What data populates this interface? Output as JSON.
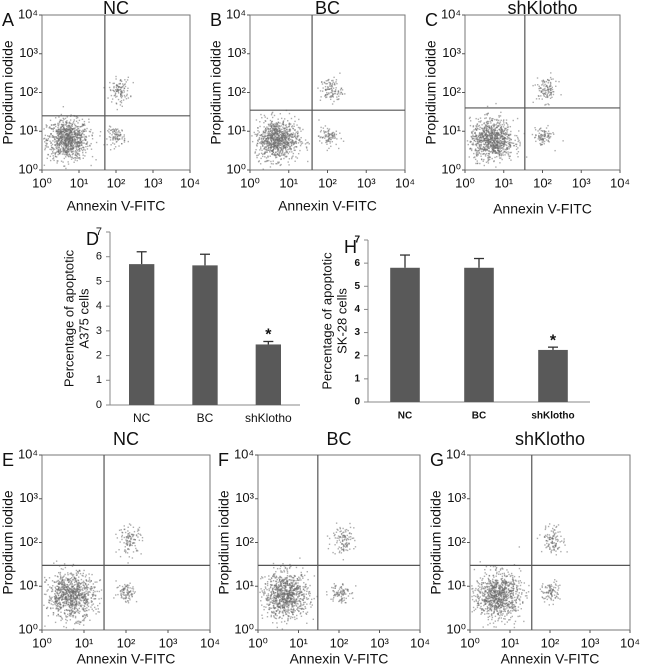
{
  "chart_data": [
    {
      "type": "flow",
      "panel": "A",
      "title": "NC",
      "xlabel": "Annexin V-FITC",
      "ylabel": "Propidium iodide",
      "log_scale": true,
      "xlim": [
        1,
        10000
      ],
      "ylim": [
        1,
        10000
      ],
      "gate_x": 50,
      "gate_y": 25,
      "xticks": [
        {
          "value": 1,
          "label": "10⁰"
        },
        {
          "value": 10,
          "label": "10¹"
        },
        {
          "value": 100,
          "label": "10²"
        },
        {
          "value": 1000,
          "label": "10³"
        },
        {
          "value": 10000,
          "label": "10⁴"
        }
      ],
      "yticks": [
        {
          "value": 1,
          "label": "10⁰"
        },
        {
          "value": 10,
          "label": "10¹"
        },
        {
          "value": 100,
          "label": "10²"
        },
        {
          "value": 1000,
          "label": "10³"
        },
        {
          "value": 10000,
          "label": "10⁴"
        }
      ]
    },
    {
      "type": "flow",
      "panel": "B",
      "title": "BC",
      "xlabel": "Annexin V-FITC",
      "ylabel": "Propidium iodide",
      "log_scale": true,
      "xlim": [
        1,
        10000
      ],
      "ylim": [
        1,
        10000
      ],
      "gate_x": 40,
      "gate_y": 35,
      "xticks": [
        {
          "value": 1,
          "label": "10⁰"
        },
        {
          "value": 10,
          "label": "10¹"
        },
        {
          "value": 100,
          "label": "10²"
        },
        {
          "value": 1000,
          "label": "10³"
        },
        {
          "value": 10000,
          "label": "10⁴"
        }
      ],
      "yticks": [
        {
          "value": 1,
          "label": "10⁰"
        },
        {
          "value": 10,
          "label": "10¹"
        },
        {
          "value": 100,
          "label": "10²"
        },
        {
          "value": 1000,
          "label": "10³"
        },
        {
          "value": 10000,
          "label": "10⁴"
        }
      ]
    },
    {
      "type": "flow",
      "panel": "C",
      "title": "shKlotho",
      "xlabel": "Annexin V-FITC",
      "ylabel": "Propidium iodide",
      "log_scale": true,
      "xlim": [
        1,
        10000
      ],
      "ylim": [
        1,
        10000
      ],
      "gate_x": 35,
      "gate_y": 40,
      "xticks": [
        {
          "value": 1,
          "label": "10⁰"
        },
        {
          "value": 10,
          "label": "10¹"
        },
        {
          "value": 100,
          "label": "10²"
        },
        {
          "value": 1000,
          "label": "10³"
        },
        {
          "value": 10000,
          "label": "10⁴"
        }
      ],
      "yticks": [
        {
          "value": 1,
          "label": "10⁰"
        },
        {
          "value": 10,
          "label": "10¹"
        },
        {
          "value": 100,
          "label": "10²"
        },
        {
          "value": 1000,
          "label": "10³"
        },
        {
          "value": 10000,
          "label": "10⁴"
        }
      ]
    },
    {
      "type": "bar",
      "panel": "D",
      "ylabel": [
        "Percentage of apoptotic",
        "A375 cells"
      ],
      "categories": [
        "NC",
        "BC",
        "shKlotho"
      ],
      "values": [
        5.7,
        5.65,
        2.45
      ],
      "errors": [
        0.5,
        0.45,
        0.12
      ],
      "annotations": [
        null,
        null,
        "*"
      ],
      "color": "#595959",
      "ylim": [
        0,
        7
      ],
      "yticks": [
        0,
        1,
        2,
        3,
        4,
        5,
        6,
        7
      ]
    },
    {
      "type": "bar",
      "panel": "H",
      "ylabel": [
        "Percentage of apoptotic",
        "SK-28 cells"
      ],
      "categories": [
        "NC",
        "BC",
        "shKlotho"
      ],
      "values": [
        5.8,
        5.8,
        2.25
      ],
      "errors": [
        0.55,
        0.4,
        0.12
      ],
      "annotations": [
        null,
        null,
        "*"
      ],
      "color": "#595959",
      "ylim": [
        0,
        7
      ],
      "yticks": [
        0,
        1,
        2,
        3,
        4,
        5,
        6,
        7
      ]
    },
    {
      "type": "flow",
      "panel": "E",
      "title": "NC",
      "xlabel": "Annexin V-FITC",
      "ylabel": "Propidium iodide",
      "log_scale": true,
      "xlim": [
        1,
        10000
      ],
      "ylim": [
        1,
        10000
      ],
      "gate_x": 30,
      "gate_y": 30,
      "xticks": [
        {
          "value": 1,
          "label": "10⁰"
        },
        {
          "value": 10,
          "label": "10¹"
        },
        {
          "value": 100,
          "label": "10²"
        },
        {
          "value": 1000,
          "label": "10³"
        },
        {
          "value": 10000,
          "label": "10⁴"
        }
      ],
      "yticks": [
        {
          "value": 1,
          "label": "10⁰"
        },
        {
          "value": 10,
          "label": "10¹"
        },
        {
          "value": 100,
          "label": "10²"
        },
        {
          "value": 1000,
          "label": "10³"
        },
        {
          "value": 10000,
          "label": "10⁴"
        }
      ]
    },
    {
      "type": "flow",
      "panel": "F",
      "title": "BC",
      "xlabel": "Annexin V-FITC",
      "ylabel": "Propidium iodide",
      "log_scale": true,
      "xlim": [
        1,
        10000
      ],
      "ylim": [
        1,
        10000
      ],
      "gate_x": 30,
      "gate_y": 30,
      "xticks": [
        {
          "value": 1,
          "label": "10⁰"
        },
        {
          "value": 10,
          "label": "10¹"
        },
        {
          "value": 100,
          "label": "10²"
        },
        {
          "value": 1000,
          "label": "10³"
        },
        {
          "value": 10000,
          "label": "10⁴"
        }
      ],
      "yticks": [
        {
          "value": 1,
          "label": "10⁰"
        },
        {
          "value": 10,
          "label": "10¹"
        },
        {
          "value": 100,
          "label": "10²"
        },
        {
          "value": 1000,
          "label": "10³"
        },
        {
          "value": 10000,
          "label": "10⁴"
        }
      ]
    },
    {
      "type": "flow",
      "panel": "G",
      "title": "shKlotho",
      "xlabel": "Annexin V-FITC",
      "ylabel": "Propidium iodide",
      "log_scale": true,
      "xlim": [
        1,
        10000
      ],
      "ylim": [
        1,
        10000
      ],
      "gate_x": 35,
      "gate_y": 30,
      "xticks": [
        {
          "value": 1,
          "label": "10⁰"
        },
        {
          "value": 10,
          "label": "10¹"
        },
        {
          "value": 100,
          "label": "10²"
        },
        {
          "value": 1000,
          "label": "10³"
        },
        {
          "value": 10000,
          "label": "10⁴"
        }
      ],
      "yticks": [
        {
          "value": 1,
          "label": "10⁰"
        },
        {
          "value": 10,
          "label": "10¹"
        },
        {
          "value": 100,
          "label": "10²"
        },
        {
          "value": 1000,
          "label": "10³"
        },
        {
          "value": 10000,
          "label": "10⁴"
        }
      ]
    }
  ]
}
